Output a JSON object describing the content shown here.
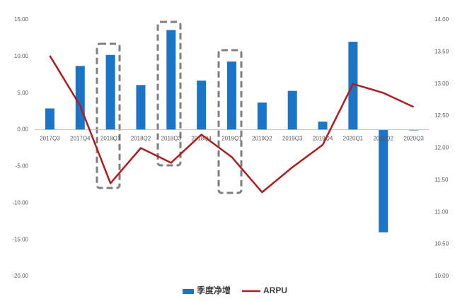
{
  "chart_data": {
    "type": "bar_line",
    "categories": [
      "2017Q3",
      "2017Q4",
      "2018Q1",
      "2018Q2",
      "2018Q3",
      "2018Q4",
      "2019Q1",
      "2019Q2",
      "2019Q3",
      "2019Q4",
      "2020Q1",
      "2020Q2",
      "2020Q3"
    ],
    "series": [
      {
        "name": "季度净增",
        "type": "bar",
        "color": "#1a75c9",
        "values": [
          2.9,
          8.7,
          10.2,
          6.1,
          13.6,
          6.7,
          9.3,
          3.7,
          5.3,
          1.1,
          12.0,
          -14.0,
          -0.1
        ]
      },
      {
        "name": "ARPU",
        "type": "line",
        "axis": "y2",
        "color": "#b01c1c",
        "values": [
          13.44,
          12.66,
          11.45,
          12.0,
          11.77,
          12.21,
          11.86,
          11.31,
          11.7,
          12.05,
          13.0,
          12.86,
          12.64
        ]
      }
    ],
    "ylim": [
      -20,
      15
    ],
    "yticks": [
      {
        "value": -20,
        "label": "-20.00"
      },
      {
        "value": -15,
        "label": "-15.00"
      },
      {
        "value": -10,
        "label": "-10.00"
      },
      {
        "value": -5,
        "label": "-5.00"
      },
      {
        "value": 0,
        "label": "0.00"
      },
      {
        "value": 5,
        "label": "5.00"
      },
      {
        "value": 10,
        "label": "10.00"
      },
      {
        "value": 15,
        "label": "15.00"
      }
    ],
    "y2lim": [
      10,
      14
    ],
    "y2ticks": [
      {
        "value": 10,
        "label": "10.00"
      },
      {
        "value": 10.5,
        "label": "10.50"
      },
      {
        "value": 11,
        "label": "11.00"
      },
      {
        "value": 11.5,
        "label": "11.50"
      },
      {
        "value": 12,
        "label": "12.00"
      },
      {
        "value": 12.5,
        "label": "12.50"
      },
      {
        "value": 13,
        "label": "13.00"
      },
      {
        "value": 13.5,
        "label": "13.50"
      },
      {
        "value": 14,
        "label": "14.00"
      }
    ],
    "legend": "bottom"
  }
}
